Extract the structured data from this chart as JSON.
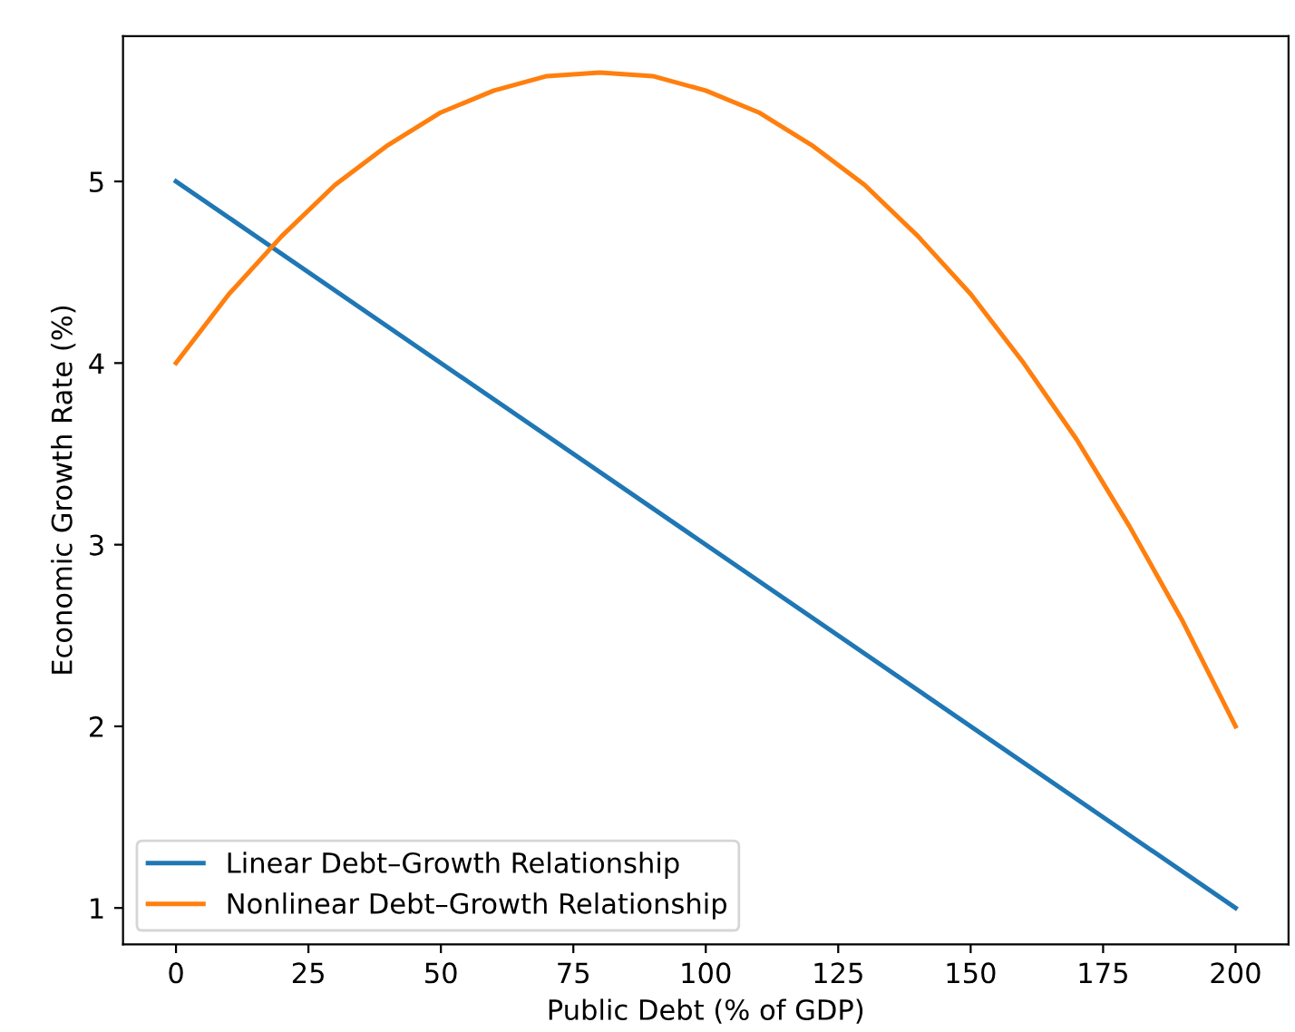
{
  "chart_data": {
    "type": "line",
    "xlabel": "Public Debt (% of GDP)",
    "ylabel": "Economic Growth Rate (%)",
    "series": [
      {
        "name": "Linear Debt–Growth Relationship",
        "color": "#1f77b4",
        "x": [
          0,
          200
        ],
        "values": [
          5.0,
          1.0
        ]
      },
      {
        "name": "Nonlinear Debt–Growth Relationship",
        "color": "#ff7f0e",
        "x": [
          0,
          10,
          20,
          30,
          40,
          50,
          60,
          70,
          80,
          90,
          100,
          110,
          120,
          130,
          140,
          150,
          160,
          170,
          180,
          190,
          200
        ],
        "values": [
          4.0,
          4.38,
          4.7,
          4.98,
          5.2,
          5.38,
          5.5,
          5.58,
          5.6,
          5.58,
          5.5,
          5.38,
          5.2,
          4.98,
          4.7,
          4.38,
          4.0,
          3.58,
          3.1,
          2.58,
          2.0
        ]
      }
    ],
    "xlim": [
      -10,
      210
    ],
    "ylim": [
      0.8,
      5.8
    ],
    "xticks": [
      0,
      25,
      50,
      75,
      100,
      125,
      150,
      175,
      200
    ],
    "yticks": [
      1,
      2,
      3,
      4,
      5
    ],
    "grid": false,
    "legend": "lower left"
  }
}
